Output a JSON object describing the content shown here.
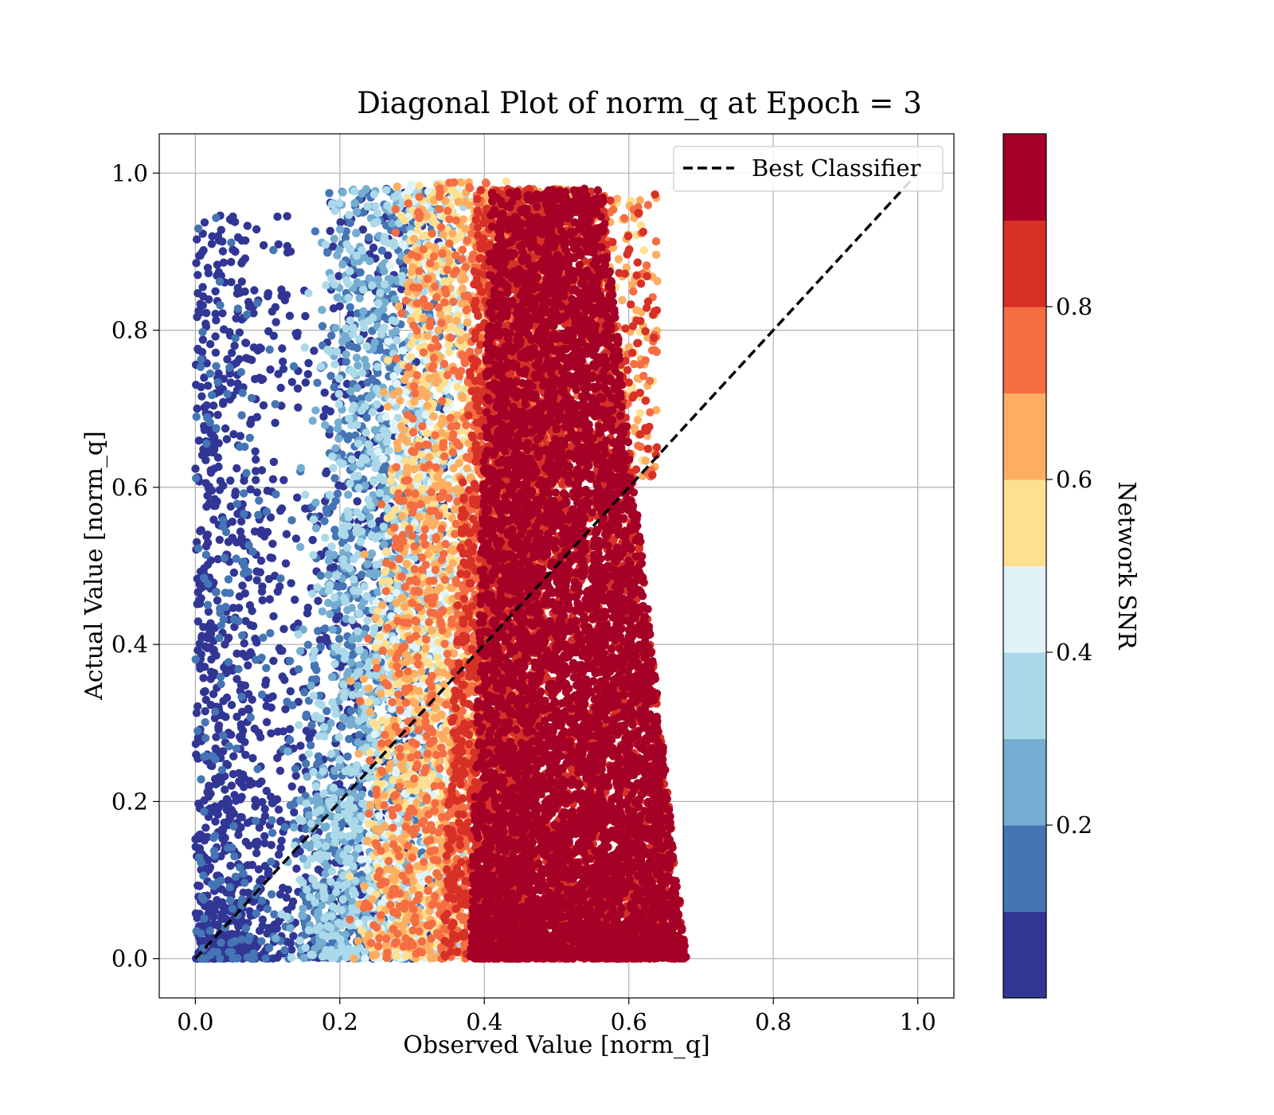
{
  "chart_data": {
    "type": "scatter",
    "title": "Diagonal Plot of norm_q at Epoch = 3",
    "xlabel": "Observed Value [norm_q]",
    "ylabel": "Actual Value [norm_q]",
    "xlim": [
      -0.05,
      1.05
    ],
    "ylim": [
      -0.05,
      1.05
    ],
    "x_ticks": [
      "0.0",
      "0.2",
      "0.4",
      "0.6",
      "0.8",
      "1.0"
    ],
    "y_ticks": [
      "0.0",
      "0.2",
      "0.4",
      "0.6",
      "0.8",
      "1.0"
    ],
    "grid": true,
    "legend": {
      "position": "top-right",
      "entries": [
        "Best Classifier"
      ]
    },
    "reference_line": {
      "name": "Best Classifier",
      "style": "dashed",
      "color": "#000000",
      "x": [
        0,
        1
      ],
      "y": [
        0,
        1
      ]
    },
    "colorbar": {
      "label": "Network SNR",
      "range": [
        0.0,
        1.0
      ],
      "ticks": [
        "0.2",
        "0.4",
        "0.6",
        "0.8"
      ],
      "bins": 10,
      "colors": [
        "#313695",
        "#4575b4",
        "#74add1",
        "#abd9e9",
        "#e0f3f8",
        "#fee090",
        "#fdae61",
        "#f46d43",
        "#d73027",
        "#a50026"
      ]
    },
    "point_cloud": {
      "description_bands": [
        {
          "snr_range": [
            0.0,
            0.1
          ],
          "x_range": [
            0.0,
            0.3
          ],
          "y_range": [
            0.0,
            0.95
          ]
        },
        {
          "snr_range": [
            0.1,
            0.4
          ],
          "x_range": [
            0.2,
            0.36
          ],
          "y_range": [
            0.0,
            0.98
          ]
        },
        {
          "snr_range": [
            0.4,
            0.7
          ],
          "x_range": [
            0.3,
            0.45
          ],
          "y_range": [
            0.0,
            0.99
          ]
        },
        {
          "snr_range": [
            0.7,
            1.0
          ],
          "x_range": [
            0.35,
            0.7
          ],
          "y_range": [
            0.0,
            0.99
          ]
        }
      ]
    }
  }
}
